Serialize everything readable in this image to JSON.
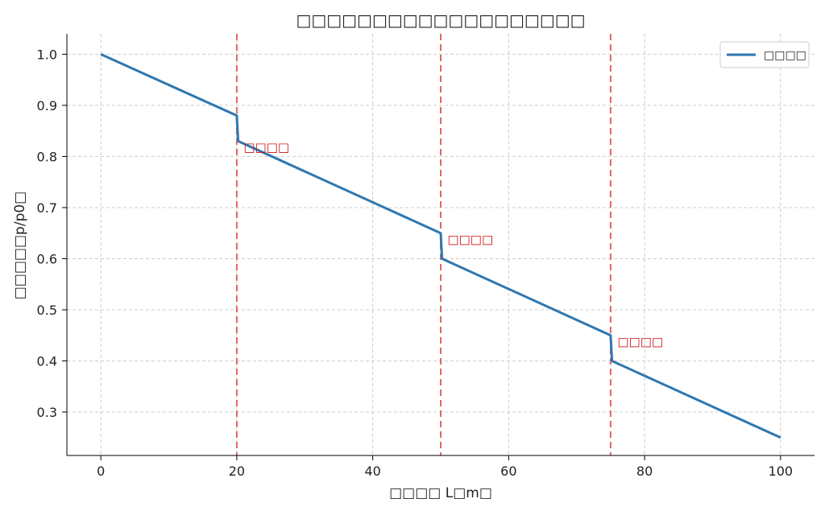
{
  "chart_data": {
    "type": "line",
    "title": "□□□□□□□□□□□□□□□□□□□",
    "xlabel": "□□□□ L□m□",
    "ylabel": "□□□□□p/p0□",
    "xlim": [
      -5,
      105
    ],
    "ylim": [
      0.215,
      1.04
    ],
    "xticks": [
      0,
      20,
      40,
      60,
      80,
      100
    ],
    "yticks": [
      0.3,
      0.4,
      0.5,
      0.6,
      0.7,
      0.8,
      0.9,
      1.0
    ],
    "xtick_labels": [
      "0",
      "20",
      "40",
      "60",
      "80",
      "100"
    ],
    "ytick_labels": [
      "0.3",
      "0.4",
      "0.5",
      "0.6",
      "0.7",
      "0.8",
      "0.9",
      "1.0"
    ],
    "grid": true,
    "legend_position": "top-right",
    "series": [
      {
        "name": "□□□□",
        "color": "#2e77b0",
        "x": [
          0,
          20,
          20.2,
          50,
          50.2,
          75,
          75.2,
          100
        ],
        "y": [
          1.0,
          0.88,
          0.83,
          0.65,
          0.6,
          0.45,
          0.4,
          0.25
        ]
      }
    ],
    "vlines": [
      {
        "x": 20,
        "color": "#e06666",
        "style": "dashed"
      },
      {
        "x": 50,
        "color": "#e06666",
        "style": "dashed"
      },
      {
        "x": 75,
        "color": "#e06666",
        "style": "dashed"
      }
    ],
    "annotations": [
      {
        "text": "□□□□",
        "x": 21,
        "y": 0.81,
        "color": "#cc1111"
      },
      {
        "text": "□□□□",
        "x": 51,
        "y": 0.63,
        "color": "#cc1111"
      },
      {
        "text": "□□□□",
        "x": 76,
        "y": 0.43,
        "color": "#cc1111"
      }
    ]
  }
}
